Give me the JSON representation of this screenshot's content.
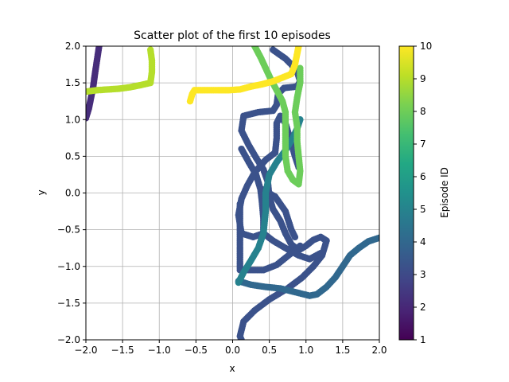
{
  "chart_data": {
    "type": "scatter",
    "title": "Scatter plot of the first 10 episodes",
    "xlabel": "x",
    "ylabel": "y",
    "xlim": [
      -2,
      2
    ],
    "ylim": [
      -2,
      2
    ],
    "xticks": [
      -2.0,
      -1.5,
      -1.0,
      -0.5,
      0.0,
      0.5,
      1.0,
      1.5,
      2.0
    ],
    "yticks": [
      -2.0,
      -1.5,
      -1.0,
      -0.5,
      0.0,
      0.5,
      1.0,
      1.5,
      2.0
    ],
    "xtick_labels": [
      "−2.0",
      "−1.5",
      "−1.0",
      "−0.5",
      "0.0",
      "0.5",
      "1.0",
      "1.5",
      "2.0"
    ],
    "ytick_labels": [
      "−2.0",
      "−1.5",
      "−1.0",
      "−0.5",
      "0.0",
      "0.5",
      "1.0",
      "1.5",
      "2.0"
    ],
    "grid": true,
    "colorbar": {
      "label": "Episode ID",
      "colormap": "viridis",
      "range": [
        1,
        10
      ],
      "ticks": [
        1,
        2,
        3,
        4,
        5,
        6,
        7,
        8,
        9,
        10
      ],
      "tick_labels": [
        "1",
        "2",
        "3",
        "4",
        "5",
        "6",
        "7",
        "8",
        "9",
        "10"
      ]
    },
    "series": [
      {
        "episode": 2,
        "color": "#472d7b",
        "path": [
          [
            -1.82,
            2.0
          ],
          [
            -1.85,
            1.8
          ],
          [
            -1.88,
            1.6
          ],
          [
            -1.9,
            1.45
          ],
          [
            -1.93,
            1.3
          ],
          [
            -1.96,
            1.15
          ],
          [
            -2.0,
            1.02
          ]
        ]
      },
      {
        "episode": 3,
        "color": "#3b528b",
        "path": [
          [
            0.55,
            1.95
          ],
          [
            0.62,
            1.9
          ],
          [
            0.72,
            1.83
          ],
          [
            0.8,
            1.75
          ],
          [
            0.88,
            1.65
          ],
          [
            0.92,
            1.52
          ],
          [
            0.88,
            1.45
          ],
          [
            0.7,
            1.43
          ],
          [
            0.62,
            1.35
          ],
          [
            0.6,
            1.2
          ],
          [
            0.55,
            1.12
          ],
          [
            0.35,
            1.1
          ],
          [
            0.15,
            1.05
          ],
          [
            0.12,
            0.85
          ],
          [
            0.22,
            0.65
          ],
          [
            0.32,
            0.48
          ],
          [
            0.42,
            0.32
          ],
          [
            0.48,
            0.15
          ],
          [
            0.5,
            -0.05
          ],
          [
            0.55,
            -0.22
          ],
          [
            0.65,
            -0.38
          ],
          [
            0.72,
            -0.55
          ],
          [
            0.8,
            -0.7
          ],
          [
            0.9,
            -0.78
          ],
          [
            1.0,
            -0.72
          ],
          [
            1.1,
            -0.64
          ],
          [
            1.2,
            -0.6
          ],
          [
            1.28,
            -0.65
          ],
          [
            1.22,
            -0.85
          ],
          [
            1.1,
            -1.0
          ],
          [
            0.95,
            -1.15
          ],
          [
            0.75,
            -1.3
          ],
          [
            0.5,
            -1.45
          ],
          [
            0.3,
            -1.6
          ],
          [
            0.15,
            -1.75
          ],
          [
            0.1,
            -1.95
          ],
          [
            0.12,
            -2.0
          ]
        ]
      },
      {
        "episode": 3,
        "color": "#3b528b",
        "path": [
          [
            0.12,
            0.6
          ],
          [
            0.22,
            0.42
          ],
          [
            0.32,
            0.25
          ],
          [
            0.38,
            0.05
          ],
          [
            0.4,
            -0.12
          ],
          [
            0.42,
            -0.35
          ],
          [
            0.42,
            -0.55
          ],
          [
            0.28,
            -0.6
          ],
          [
            0.12,
            -0.55
          ],
          [
            0.08,
            -0.3
          ],
          [
            0.12,
            -0.08
          ],
          [
            0.2,
            0.1
          ],
          [
            0.3,
            0.28
          ],
          [
            0.45,
            0.45
          ],
          [
            0.58,
            0.55
          ],
          [
            0.6,
            0.75
          ],
          [
            0.6,
            0.95
          ],
          [
            0.65,
            1.05
          ],
          [
            0.72,
            0.95
          ],
          [
            0.78,
            0.75
          ],
          [
            0.85,
            0.5
          ],
          [
            0.9,
            0.35
          ]
        ]
      },
      {
        "episode": 3,
        "color": "#3b528b",
        "path": [
          [
            0.42,
            -0.55
          ],
          [
            0.55,
            -0.65
          ],
          [
            0.72,
            -0.75
          ],
          [
            0.9,
            -0.85
          ],
          [
            1.05,
            -0.9
          ],
          [
            1.2,
            -0.82
          ]
        ]
      },
      {
        "episode": 3,
        "color": "#3b528b",
        "path": [
          [
            0.4,
            0.05
          ],
          [
            0.58,
            -0.05
          ],
          [
            0.72,
            -0.25
          ],
          [
            0.8,
            -0.5
          ],
          [
            0.85,
            -0.6
          ]
        ]
      },
      {
        "episode": 3,
        "color": "#3b528b",
        "path": [
          [
            0.1,
            -0.15
          ],
          [
            0.1,
            -0.4
          ],
          [
            0.1,
            -0.65
          ],
          [
            0.1,
            -0.85
          ],
          [
            0.1,
            -1.05
          ],
          [
            0.22,
            -1.05
          ],
          [
            0.42,
            -1.05
          ],
          [
            0.6,
            -0.98
          ],
          [
            0.8,
            -0.82
          ],
          [
            0.92,
            -0.72
          ]
        ]
      },
      {
        "episode": 4,
        "color": "#31688e",
        "path": [
          [
            0.08,
            -1.2
          ],
          [
            0.25,
            -1.25
          ],
          [
            0.45,
            -1.28
          ],
          [
            0.65,
            -1.3
          ],
          [
            0.85,
            -1.35
          ],
          [
            1.05,
            -1.4
          ],
          [
            1.15,
            -1.38
          ],
          [
            1.28,
            -1.28
          ],
          [
            1.4,
            -1.15
          ],
          [
            1.5,
            -1.0
          ],
          [
            1.6,
            -0.85
          ],
          [
            1.72,
            -0.75
          ],
          [
            1.85,
            -0.66
          ],
          [
            2.0,
            -0.61
          ]
        ]
      },
      {
        "episode": 5,
        "color": "#26828e",
        "path": [
          [
            0.08,
            -1.22
          ],
          [
            0.15,
            -1.08
          ],
          [
            0.25,
            -0.92
          ],
          [
            0.35,
            -0.75
          ],
          [
            0.42,
            -0.55
          ],
          [
            0.45,
            -0.25
          ],
          [
            0.45,
            0.0
          ],
          [
            0.5,
            0.25
          ],
          [
            0.6,
            0.42
          ],
          [
            0.72,
            0.58
          ],
          [
            0.82,
            0.75
          ],
          [
            0.88,
            0.88
          ],
          [
            0.92,
            1.0
          ]
        ]
      },
      {
        "episode": 8,
        "color": "#6ccd5a",
        "path": [
          [
            0.3,
            2.0
          ],
          [
            0.38,
            1.85
          ],
          [
            0.45,
            1.7
          ],
          [
            0.52,
            1.55
          ],
          [
            0.6,
            1.4
          ],
          [
            0.68,
            1.25
          ],
          [
            0.72,
            1.1
          ],
          [
            0.72,
            0.9
          ],
          [
            0.72,
            0.7
          ],
          [
            0.72,
            0.5
          ],
          [
            0.75,
            0.3
          ],
          [
            0.82,
            0.18
          ],
          [
            0.9,
            0.12
          ],
          [
            0.92,
            0.3
          ],
          [
            0.9,
            0.5
          ],
          [
            0.88,
            0.7
          ],
          [
            0.88,
            0.9
          ],
          [
            0.85,
            1.1
          ],
          [
            0.88,
            1.3
          ],
          [
            0.92,
            1.5
          ],
          [
            0.92,
            1.7
          ]
        ]
      },
      {
        "episode": 9,
        "color": "#b5de2b",
        "path": [
          [
            -2.0,
            1.38
          ],
          [
            -1.85,
            1.4
          ],
          [
            -1.7,
            1.41
          ],
          [
            -1.55,
            1.42
          ],
          [
            -1.4,
            1.44
          ],
          [
            -1.25,
            1.47
          ],
          [
            -1.12,
            1.5
          ],
          [
            -1.1,
            1.65
          ],
          [
            -1.1,
            1.8
          ],
          [
            -1.12,
            1.95
          ]
        ]
      },
      {
        "episode": 10,
        "color": "#fde725",
        "path": [
          [
            -0.58,
            1.25
          ],
          [
            -0.55,
            1.35
          ],
          [
            -0.52,
            1.4
          ],
          [
            -0.35,
            1.4
          ],
          [
            -0.2,
            1.4
          ],
          [
            -0.05,
            1.4
          ],
          [
            0.1,
            1.41
          ],
          [
            0.25,
            1.45
          ],
          [
            0.4,
            1.48
          ],
          [
            0.55,
            1.52
          ],
          [
            0.7,
            1.58
          ],
          [
            0.8,
            1.62
          ],
          [
            0.85,
            1.75
          ],
          [
            0.88,
            1.9
          ],
          [
            0.9,
            2.0
          ]
        ]
      }
    ]
  }
}
